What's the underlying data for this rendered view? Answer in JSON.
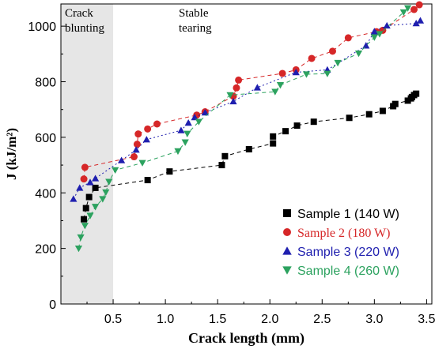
{
  "chart_data": {
    "type": "scatter",
    "xlabel": "Crack length (mm)",
    "ylabel": "J (kJ/m²)",
    "xlim": [
      0.0,
      3.55
    ],
    "ylim": [
      0,
      1080
    ],
    "x_ticks": [
      0.5,
      1.0,
      1.5,
      2.0,
      2.5,
      3.0,
      3.5
    ],
    "x_tick_labels": [
      "0.5",
      "1.0",
      "1.5",
      "2.0",
      "2.5",
      "3.0",
      "3.5"
    ],
    "y_ticks": [
      0,
      200,
      400,
      600,
      800,
      1000
    ],
    "y_tick_labels": [
      "0",
      "200",
      "400",
      "600",
      "800",
      "1000"
    ],
    "regions": [
      {
        "label_lines": [
          "Crack",
          "blunting"
        ],
        "x_range": [
          0.0,
          0.5
        ],
        "color": "#e6e6e6"
      },
      {
        "label_lines": [
          "Stable",
          "tearing"
        ]
      }
    ],
    "legend_position": "bottom-right",
    "series": [
      {
        "name": "Sample 1 (140 W)",
        "color": "#000000",
        "marker": "square",
        "x": [
          0.22,
          0.24,
          0.27,
          0.33,
          0.83,
          1.04,
          1.54,
          1.57,
          1.8,
          2.03,
          2.03,
          2.15,
          2.26,
          2.42,
          2.76,
          2.95,
          3.08,
          3.18,
          3.2,
          3.32,
          3.35,
          3.36,
          3.38,
          3.4
        ],
        "y": [
          305,
          345,
          385,
          418,
          446,
          477,
          500,
          532,
          557,
          578,
          603,
          622,
          642,
          656,
          670,
          683,
          695,
          712,
          720,
          732,
          740,
          745,
          752,
          757
        ]
      },
      {
        "name": "Sample 2 (180 W)",
        "color": "#d62728",
        "marker": "circle",
        "x": [
          0.22,
          0.23,
          0.7,
          0.73,
          0.74,
          0.83,
          0.92,
          1.3,
          1.38,
          1.65,
          1.68,
          1.7,
          2.12,
          2.25,
          2.4,
          2.6,
          2.75,
          3.02,
          3.08,
          3.38,
          3.43
        ],
        "y": [
          450,
          492,
          530,
          575,
          612,
          630,
          648,
          680,
          692,
          748,
          778,
          806,
          830,
          843,
          884,
          910,
          958,
          980,
          985,
          1060,
          1077
        ]
      },
      {
        "name": "Sample 3 (220 W)",
        "color": "#1f1faf",
        "marker": "triangle-up",
        "x": [
          0.12,
          0.18,
          0.28,
          0.33,
          0.58,
          0.72,
          0.82,
          1.15,
          1.22,
          1.28,
          1.38,
          1.65,
          1.88,
          2.25,
          2.55,
          2.92,
          3.0,
          3.12,
          3.4,
          3.44
        ],
        "y": [
          378,
          418,
          438,
          452,
          517,
          555,
          592,
          625,
          652,
          672,
          689,
          729,
          779,
          834,
          843,
          930,
          981,
          1002,
          1010,
          1020
        ]
      },
      {
        "name": "Sample 4 (260 W)",
        "color": "#2ca25f",
        "marker": "triangle-down",
        "x": [
          0.17,
          0.19,
          0.23,
          0.28,
          0.33,
          0.4,
          0.43,
          0.46,
          0.52,
          0.78,
          1.12,
          1.19,
          1.21,
          1.32,
          1.62,
          2.05,
          2.1,
          2.35,
          2.55,
          2.65,
          2.85,
          3.0,
          3.05,
          3.28,
          3.32
        ],
        "y": [
          200,
          240,
          282,
          318,
          350,
          378,
          402,
          440,
          482,
          508,
          550,
          582,
          613,
          656,
          752,
          764,
          788,
          827,
          829,
          868,
          902,
          960,
          972,
          1050,
          1065
        ]
      }
    ]
  }
}
